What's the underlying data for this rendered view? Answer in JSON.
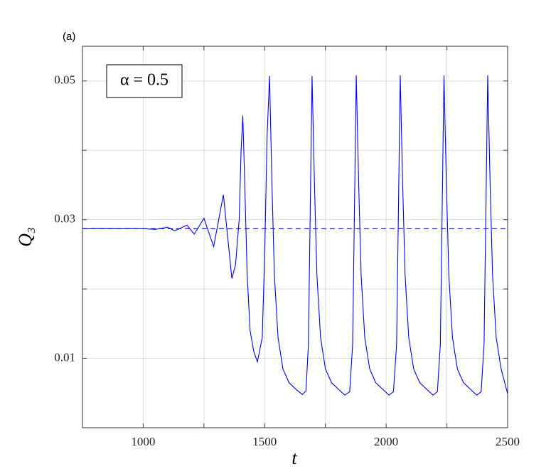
{
  "chart_data": {
    "type": "line",
    "title": "(a)",
    "xlabel": "t",
    "ylabel": "Q₃",
    "annotation": "α = 0.5",
    "xlim": [
      750,
      2500
    ],
    "ylim": [
      0,
      0.055
    ],
    "xticks": [
      1000,
      1500,
      2000,
      2500
    ],
    "xminorticks": [
      1250,
      1750,
      2250
    ],
    "yticks": [
      0.01,
      0.03,
      0.05
    ],
    "yminorticks": [
      0.02,
      0.04
    ],
    "grid": true,
    "series": [
      {
        "color": "#0000ff",
        "dash": false,
        "x": [
          750,
          1000,
          1050,
          1100,
          1130,
          1180,
          1210,
          1250,
          1290,
          1330,
          1365,
          1380,
          1395,
          1403,
          1410,
          1418,
          1428,
          1440,
          1455,
          1470,
          1490,
          1500,
          1510,
          1520,
          1530,
          1540,
          1555,
          1575,
          1600,
          1630,
          1655,
          1670,
          1680,
          1687,
          1695,
          1705,
          1715,
          1730,
          1750,
          1775,
          1805,
          1830,
          1850,
          1862,
          1869,
          1877,
          1887,
          1897,
          1912,
          1932,
          1957,
          1987,
          2012,
          2030,
          2043,
          2050,
          2058,
          2068,
          2078,
          2093,
          2113,
          2138,
          2168,
          2193,
          2211,
          2223,
          2230,
          2238,
          2248,
          2258,
          2273,
          2293,
          2318,
          2348,
          2373,
          2391,
          2403,
          2410,
          2418,
          2428,
          2438,
          2453,
          2473,
          2500
        ],
        "values": [
          0.0287,
          0.0287,
          0.0286,
          0.0289,
          0.0284,
          0.0292,
          0.0279,
          0.0302,
          0.0261,
          0.0336,
          0.0215,
          0.0235,
          0.03,
          0.04,
          0.045,
          0.035,
          0.022,
          0.014,
          0.011,
          0.0095,
          0.013,
          0.025,
          0.042,
          0.0507,
          0.035,
          0.022,
          0.013,
          0.0085,
          0.0065,
          0.0055,
          0.0048,
          0.0053,
          0.012,
          0.03,
          0.0507,
          0.035,
          0.022,
          0.013,
          0.0085,
          0.0065,
          0.0055,
          0.0047,
          0.0052,
          0.012,
          0.03,
          0.0508,
          0.035,
          0.022,
          0.013,
          0.0085,
          0.0065,
          0.0055,
          0.0047,
          0.0052,
          0.012,
          0.03,
          0.0508,
          0.035,
          0.022,
          0.013,
          0.0085,
          0.0065,
          0.0055,
          0.0047,
          0.0052,
          0.012,
          0.03,
          0.0508,
          0.035,
          0.022,
          0.013,
          0.0085,
          0.0065,
          0.0055,
          0.0047,
          0.0052,
          0.012,
          0.03,
          0.0508,
          0.035,
          0.022,
          0.013,
          0.0085,
          0.0049
        ]
      },
      {
        "color": "#0000ff",
        "dash": true,
        "x": [
          750,
          2500
        ],
        "values": [
          0.0287,
          0.0287
        ]
      }
    ]
  }
}
